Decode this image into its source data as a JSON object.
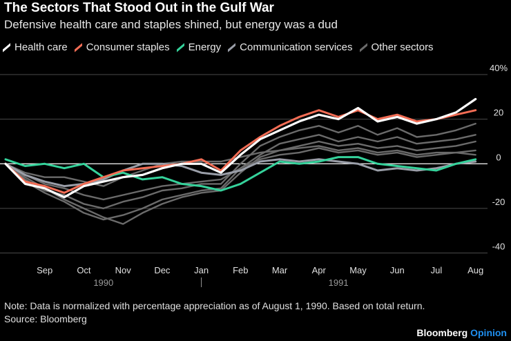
{
  "chart_data": {
    "type": "line",
    "title": "The Sectors That Stood Out in the Gulf War",
    "subtitle": "Defensive health care and staples shined, but energy was a dud",
    "ylabel": "",
    "yunit": "%",
    "ylim": [
      -42,
      40
    ],
    "yticks": [
      40,
      20,
      0,
      -20,
      -40
    ],
    "ytick_labels": [
      "40%",
      "20",
      "0",
      "-20",
      "-40"
    ],
    "x_domain": [
      0,
      12.2
    ],
    "xticks": [
      {
        "label": "Sep",
        "x": 1.0
      },
      {
        "label": "Oct",
        "x": 2.0
      },
      {
        "label": "Nov",
        "x": 3.0
      },
      {
        "label": "Dec",
        "x": 4.0
      },
      {
        "label": "Jan",
        "x": 5.0
      },
      {
        "label": "Feb",
        "x": 6.0
      },
      {
        "label": "Mar",
        "x": 7.0
      },
      {
        "label": "Apr",
        "x": 8.0
      },
      {
        "label": "May",
        "x": 9.0
      },
      {
        "label": "Jun",
        "x": 10.0
      },
      {
        "label": "Jul",
        "x": 11.0
      },
      {
        "label": "Aug",
        "x": 12.0
      }
    ],
    "years": [
      {
        "label": "1990",
        "x": 2.5
      },
      {
        "label": "1991",
        "x": 8.5
      }
    ],
    "year_divider_x": 5.0,
    "series": [
      {
        "name": "Other sectors",
        "color": "#6b6b6b",
        "x": [
          0,
          0.5,
          1.0,
          1.5,
          2.0,
          2.5,
          3.0,
          3.5,
          4.0,
          4.5,
          5.0,
          5.5,
          6.0,
          6.5,
          7.0,
          7.5,
          8.0,
          8.5,
          9.0,
          9.5,
          10.0,
          10.5,
          11.0,
          11.5,
          12.0
        ],
        "values": [
          0,
          -7,
          -12,
          -14,
          -18,
          -20,
          -17,
          -15,
          -12,
          -11,
          -9,
          -9,
          0,
          8,
          12,
          15,
          17,
          14,
          17,
          13,
          16,
          12,
          13,
          15,
          18
        ]
      },
      {
        "name": "Other sectors",
        "color": "#6b6b6b",
        "x": [
          0,
          0.5,
          1.0,
          1.5,
          2.0,
          2.5,
          3.0,
          3.5,
          4.0,
          4.5,
          5.0,
          5.5,
          6.0,
          6.5,
          7.0,
          7.5,
          8.0,
          8.5,
          9.0,
          9.5,
          10.0,
          10.5,
          11.0,
          11.5,
          12.0
        ],
        "values": [
          0,
          -8,
          -13,
          -17,
          -22,
          -25,
          -23,
          -20,
          -16,
          -14,
          -12,
          -11,
          -2,
          4,
          9,
          11,
          13,
          10,
          12,
          10,
          12,
          9,
          10,
          11,
          13
        ]
      },
      {
        "name": "Other sectors",
        "color": "#6b6b6b",
        "x": [
          0,
          0.5,
          1.0,
          1.5,
          2.0,
          2.5,
          3.0,
          3.5,
          4.0,
          4.5,
          5.0,
          5.5,
          6.0,
          6.5,
          7.0,
          7.5,
          8.0,
          8.5,
          9.0,
          9.5,
          10.0,
          10.5,
          11.0,
          11.5,
          12.0
        ],
        "values": [
          0,
          -6,
          -11,
          -16,
          -20,
          -24,
          -27,
          -22,
          -18,
          -15,
          -13,
          -12,
          -4,
          3,
          6,
          8,
          10,
          8,
          9,
          7,
          8,
          6,
          7,
          8,
          10
        ]
      },
      {
        "name": "Other sectors",
        "color": "#6b6b6b",
        "x": [
          0,
          0.5,
          1.0,
          1.5,
          2.0,
          2.5,
          3.0,
          3.5,
          4.0,
          4.5,
          5.0,
          5.5,
          6.0,
          6.5,
          7.0,
          7.5,
          8.0,
          8.5,
          9.0,
          9.5,
          10.0,
          10.5,
          11.0,
          11.5,
          12.0
        ],
        "values": [
          0,
          -5,
          -9,
          -11,
          -14,
          -16,
          -14,
          -12,
          -10,
          -9,
          -8,
          -7,
          -2,
          2,
          4,
          5,
          7,
          5,
          6,
          4,
          5,
          3,
          4,
          5,
          6
        ]
      },
      {
        "name": "Other sectors",
        "color": "#6b6b6b",
        "x": [
          0,
          0.5,
          1.0,
          1.5,
          2.0,
          2.5,
          3.0,
          3.5,
          4.0,
          4.5,
          5.0,
          5.5,
          6.0,
          6.5,
          7.0,
          7.5,
          8.0,
          8.5,
          9.0,
          9.5,
          10.0,
          10.5,
          11.0,
          11.5,
          12.0
        ],
        "values": [
          0,
          -4,
          -6,
          -6,
          -8,
          -10,
          -6,
          -3,
          0,
          1,
          1,
          1,
          3,
          5,
          6,
          7,
          8,
          6,
          7,
          5,
          6,
          4,
          5,
          5,
          4
        ]
      },
      {
        "name": "Communication services",
        "color": "#9a9ea8",
        "x": [
          0,
          0.5,
          1.0,
          1.5,
          2.0,
          2.5,
          3.0,
          3.5,
          4.0,
          4.5,
          5.0,
          5.5,
          6.0,
          6.5,
          7.0,
          7.5,
          8.0,
          8.5,
          9.0,
          9.5,
          10.0,
          10.5,
          11.0,
          11.5,
          12.0
        ],
        "values": [
          0,
          -5,
          -8,
          -10,
          -9,
          -7,
          -3,
          0,
          0,
          -1,
          -4,
          -5,
          -3,
          1,
          2,
          1,
          2,
          1,
          0,
          -3,
          -2,
          -3,
          -2,
          0,
          1
        ]
      },
      {
        "name": "Energy",
        "color": "#35d29b",
        "x": [
          0,
          0.5,
          1.0,
          1.5,
          2.0,
          2.5,
          3.0,
          3.5,
          4.0,
          4.5,
          5.0,
          5.5,
          6.0,
          6.5,
          7.0,
          7.5,
          8.0,
          8.5,
          9.0,
          9.5,
          10.0,
          10.5,
          11.0,
          11.5,
          12.0
        ],
        "values": [
          2,
          -1,
          0,
          -2,
          0,
          -6,
          -4,
          -7,
          -6,
          -9,
          -10,
          -12,
          -9,
          -4,
          1,
          0,
          1,
          3,
          3,
          0,
          -1,
          -2,
          -3,
          0,
          2
        ]
      },
      {
        "name": "Consumer staples",
        "color": "#f36d55",
        "x": [
          0,
          0.5,
          1.0,
          1.5,
          2.0,
          2.5,
          3.0,
          3.5,
          4.0,
          4.5,
          5.0,
          5.5,
          6.0,
          6.5,
          7.0,
          7.5,
          8.0,
          8.5,
          9.0,
          9.5,
          10.0,
          10.5,
          11.0,
          11.5,
          12.0
        ],
        "values": [
          0,
          -8,
          -10,
          -13,
          -9,
          -6,
          -3,
          -2,
          -1,
          0,
          2,
          -3,
          6,
          12,
          17,
          21,
          24,
          21,
          24,
          20,
          22,
          19,
          20,
          22,
          24
        ]
      },
      {
        "name": "Health care",
        "color": "#ffffff",
        "x": [
          0,
          0.5,
          1.0,
          1.5,
          2.0,
          2.5,
          3.0,
          3.5,
          4.0,
          4.5,
          5.0,
          5.5,
          6.0,
          6.5,
          7.0,
          7.5,
          8.0,
          8.5,
          9.0,
          9.5,
          10.0,
          10.5,
          11.0,
          11.5,
          12.0
        ],
        "values": [
          0,
          -9,
          -11,
          -15,
          -10,
          -8,
          -6,
          -5,
          -2,
          0,
          0,
          -4,
          4,
          11,
          15,
          19,
          22,
          20,
          25,
          19,
          21,
          18,
          20,
          23,
          29
        ]
      }
    ]
  },
  "legend": [
    {
      "label": "Health care",
      "color": "#ffffff"
    },
    {
      "label": "Consumer staples",
      "color": "#f36d55"
    },
    {
      "label": "Energy",
      "color": "#35d29b"
    },
    {
      "label": "Communication services",
      "color": "#9a9ea8"
    },
    {
      "label": "Other sectors",
      "color": "#6b6b6b"
    }
  ],
  "footer": {
    "note": "Note: Data is normalized with percentage appreciation as of August 1, 1990. Based on total return.",
    "source": "Source: Bloomberg",
    "brand_a": "Bloomberg",
    "brand_b": "Opinion"
  }
}
